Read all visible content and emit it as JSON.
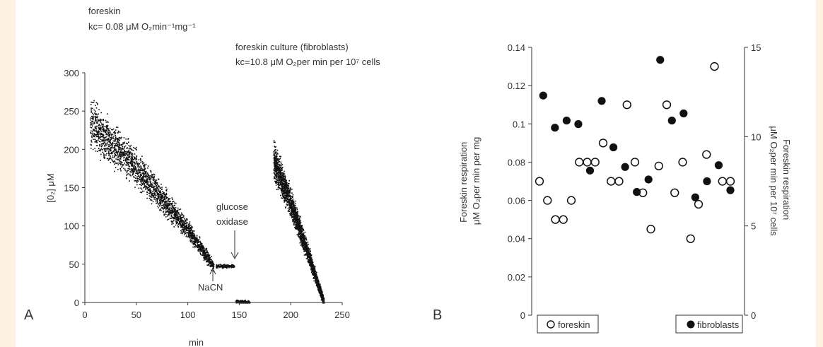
{
  "colors": {
    "background": "#fdf1e2",
    "panel": "#ffffff",
    "ink": "#111111"
  },
  "panel_labels": {
    "a": "A",
    "b": "B"
  },
  "chart_data": [
    {
      "type": "scatter",
      "panel": "A",
      "xlabel": "min",
      "ylabel": "[0₂] μM",
      "xlim": [
        0,
        250
      ],
      "ylim": [
        0,
        300
      ],
      "xticks": [
        0,
        50,
        100,
        150,
        200,
        250
      ],
      "yticks": [
        0,
        50,
        100,
        150,
        200,
        250,
        300
      ],
      "grid": false,
      "annotations": {
        "foreskin_title": "foreskin",
        "foreskin_kc": "kc= 0.08 μM O₂min⁻¹mg⁻¹",
        "culture_title": "foreskin culture (fibroblasts)",
        "culture_kc": "kc=10.8 μM O₂per min per 10⁷ cells",
        "glucose": "glucose",
        "oxidase": "oxidase",
        "nacn": "NaCN"
      },
      "series": [
        {
          "segment": "foreskin decay",
          "x": [
            5,
            50,
            100,
            125
          ],
          "y": [
            235,
            175,
            95,
            48
          ],
          "spread": 40
        },
        {
          "segment": "after NaCN",
          "x": [
            127,
            145
          ],
          "y": [
            48,
            48
          ]
        },
        {
          "segment": "after glucose oxidase",
          "x": [
            146,
            160
          ],
          "y": [
            2,
            1
          ]
        },
        {
          "segment": "fibroblast decay",
          "x": [
            183,
            200,
            220,
            232
          ],
          "y": [
            185,
            130,
            50,
            0
          ],
          "spread": 30
        }
      ]
    },
    {
      "type": "scatter",
      "panel": "B",
      "ylabel": "Foreskin respiration μM O₂per min per mg",
      "y2label": "Foreskin respiration μM O₂per min per 10⁷ cells",
      "ylim": [
        0,
        0.14
      ],
      "y2lim": [
        0,
        15
      ],
      "yticks": [
        "0",
        "0.02",
        "0.04",
        "0.06",
        "0.08",
        "0.1",
        "0.12",
        "0.14"
      ],
      "y2ticks": [
        "0",
        "5",
        "10",
        "15"
      ],
      "legend": {
        "open": "foreskin",
        "filled": "fibroblasts"
      },
      "series": [
        {
          "name": "foreskin",
          "axis": "left",
          "x": [
            1,
            2,
            3,
            4,
            5,
            6,
            7,
            8,
            9,
            10,
            11,
            12,
            13,
            14,
            15,
            16,
            17,
            18,
            19,
            20,
            21,
            22,
            23,
            24,
            25
          ],
          "y": [
            0.07,
            0.06,
            0.05,
            0.05,
            0.06,
            0.08,
            0.08,
            0.08,
            0.09,
            0.07,
            0.07,
            0.11,
            0.08,
            0.064,
            0.045,
            0.078,
            0.11,
            0.064,
            0.08,
            0.04,
            0.058,
            0.084,
            0.13,
            0.07,
            0.07
          ]
        },
        {
          "name": "fibroblasts",
          "axis": "right",
          "x": [
            1,
            2,
            3,
            4,
            5,
            6,
            7,
            8,
            9,
            10,
            11,
            12,
            13,
            14,
            15,
            16,
            17
          ],
          "y": [
            12.3,
            10.5,
            10.9,
            10.7,
            8.1,
            12.0,
            9.4,
            8.3,
            6.9,
            7.6,
            14.3,
            10.9,
            11.3,
            6.6,
            7.5,
            8.4,
            7.0
          ]
        }
      ]
    }
  ]
}
